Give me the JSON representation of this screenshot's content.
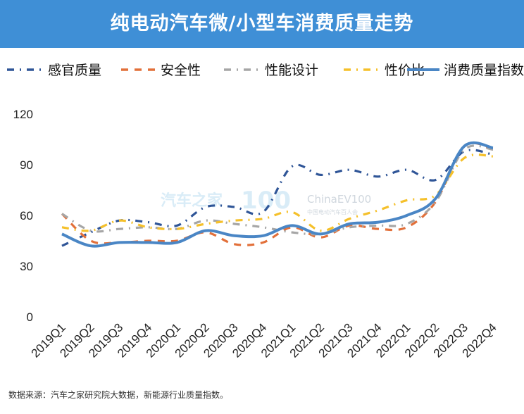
{
  "header": {
    "title": "纯电动汽车微/小型车消费质量走势"
  },
  "watermark": {
    "brand": "汽车之家",
    "logo": "100",
    "text": "ChinaEV100",
    "subtext": "中国电动汽车百人会"
  },
  "source": "数据来源：汽车之家研究院大数据，新能源行业质量指数。",
  "chart_data": {
    "type": "line",
    "title": "纯电动汽车微/小型车消费质量走势",
    "xlabel": "",
    "ylabel": "",
    "ylim": [
      0,
      120
    ],
    "yticks": [
      0,
      30,
      60,
      90,
      120
    ],
    "grid": false,
    "legend_position": "top",
    "categories": [
      "2019Q1",
      "2019Q2",
      "2019Q3",
      "2019Q4",
      "2020Q1",
      "2020Q2",
      "2020Q3",
      "2020Q4",
      "2021Q1",
      "2021Q2",
      "2021Q3",
      "2021Q4",
      "2022Q1",
      "2022Q2",
      "2022Q3",
      "2022Q4"
    ],
    "series": [
      {
        "name": "感官质量",
        "color": "#2f5597",
        "dash": "dashdot",
        "values": [
          42,
          50,
          57,
          56,
          54,
          65,
          65,
          62,
          89,
          84,
          87,
          83,
          87,
          81,
          98,
          96
        ]
      },
      {
        "name": "安全性",
        "color": "#e2703a",
        "dash": "dash",
        "values": [
          61,
          45,
          44,
          45,
          45,
          50,
          43,
          44,
          53,
          47,
          54,
          52,
          53,
          68,
          101,
          99
        ]
      },
      {
        "name": "性能设计",
        "color": "#a6a6a6",
        "dash": "dashdot",
        "values": [
          61,
          51,
          52,
          53,
          52,
          57,
          55,
          53,
          50,
          49,
          53,
          54,
          55,
          68,
          99,
          99
        ]
      },
      {
        "name": "性价比",
        "color": "#f5c02a",
        "dash": "dashdot",
        "values": [
          53,
          51,
          57,
          53,
          52,
          55,
          57,
          58,
          62,
          51,
          58,
          63,
          69,
          72,
          94,
          95
        ]
      },
      {
        "name": "消费质量指数",
        "color": "#4a86c5",
        "dash": "solid",
        "values": [
          49,
          42,
          44,
          44,
          44,
          51,
          48,
          48,
          54,
          49,
          55,
          56,
          60,
          70,
          101,
          100
        ]
      }
    ]
  }
}
